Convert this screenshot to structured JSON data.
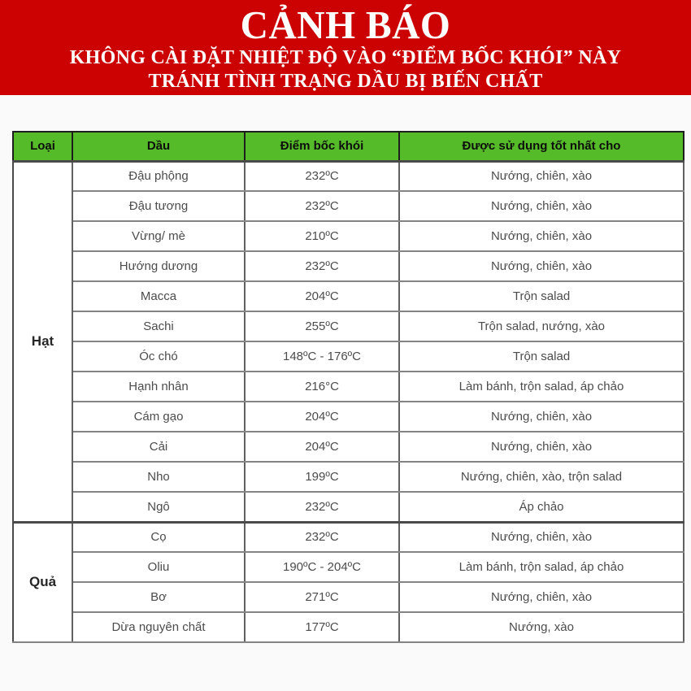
{
  "colors": {
    "banner_red": "#cc0202",
    "header_green": "#55bb28",
    "cell_text": "#4c4c4c",
    "border_gray": "#848484",
    "border_dark": "#4a4a4a",
    "page_bg": "#fafafa"
  },
  "banner": {
    "title": "CẢNH BÁO",
    "line1": "KHÔNG CÀI ĐẶT NHIỆT ĐỘ VÀO “ĐIỂM BỐC KHÓI” NÀY",
    "line2": "TRÁNH TÌNH TRẠNG DẦU BỊ BIẾN CHẤT"
  },
  "table": {
    "columns": [
      "Loại",
      "Dầu",
      "Điểm bốc khói",
      "Được sử dụng tốt nhất cho"
    ],
    "groups": [
      {
        "label": "Hạt",
        "rows": [
          [
            "Đậu phộng",
            "232ºC",
            "Nướng, chiên, xào"
          ],
          [
            "Đậu tương",
            "232ºC",
            "Nướng, chiên, xào"
          ],
          [
            "Vừng/ mè",
            "210ºC",
            "Nướng, chiên, xào"
          ],
          [
            "Hướng dương",
            "232ºC",
            "Nướng, chiên, xào"
          ],
          [
            "Macca",
            "204ºC",
            "Trộn salad"
          ],
          [
            "Sachi",
            "255ºC",
            "Trộn salad, nướng, xào"
          ],
          [
            "Óc chó",
            "148ºC - 176ºC",
            "Trộn salad"
          ],
          [
            "Hạnh nhân",
            "216°C",
            "Làm bánh, trộn salad, áp chảo"
          ],
          [
            "Cám gạo",
            "204ºC",
            "Nướng, chiên, xào"
          ],
          [
            "Cải",
            "204ºC",
            "Nướng, chiên, xào"
          ],
          [
            "Nho",
            "199ºC",
            "Nướng, chiên, xào, trộn salad"
          ],
          [
            "Ngô",
            "232ºC",
            "Áp chảo"
          ]
        ]
      },
      {
        "label": "Quả",
        "rows": [
          [
            "Cọ",
            "232ºC",
            "Nướng, chiên, xào"
          ],
          [
            "Oliu",
            "190ºC - 204ºC",
            "Làm bánh, trộn salad, áp chảo"
          ],
          [
            "Bơ",
            "271ºC",
            "Nướng, chiên, xào"
          ],
          [
            "Dừa nguyên chất",
            "177ºC",
            "Nướng, xào"
          ]
        ]
      }
    ]
  }
}
